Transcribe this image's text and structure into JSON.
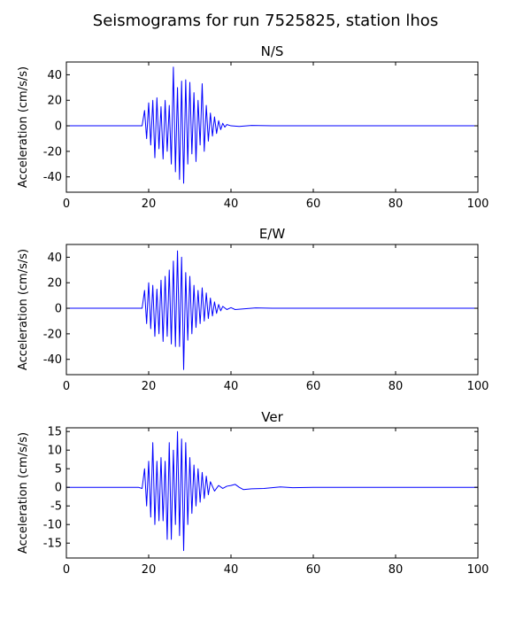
{
  "figure": {
    "title": "Seismograms for run 7525825, station lhos"
  },
  "chart_data": [
    {
      "type": "line",
      "title": "N/S",
      "ylabel": "Acceleration (cm/s/s)",
      "xlabel": "",
      "xlim": [
        0,
        100
      ],
      "ylim": [
        -52,
        50
      ],
      "xticks": [
        0,
        20,
        40,
        60,
        80,
        100
      ],
      "yticks": [
        -40,
        -20,
        0,
        20,
        40
      ],
      "color": "#0000ff",
      "series": [
        {
          "x": [
            0,
            18.4,
            19,
            19.5,
            20,
            20.5,
            21,
            21.5,
            22,
            22.5,
            23,
            23.5,
            24,
            24.5,
            25,
            25.5,
            26,
            26.5,
            27,
            27.5,
            28,
            28.5,
            29,
            29.5,
            30,
            30.5,
            31,
            31.5,
            32,
            32.5,
            33,
            33.5,
            34,
            34.5,
            35,
            35.5,
            36,
            36.5,
            37,
            37.5,
            38,
            38.5,
            39,
            40,
            42,
            45,
            50,
            60,
            100
          ],
          "y": [
            0,
            0,
            12,
            -10,
            18,
            -15,
            20,
            -25,
            22,
            -18,
            15,
            -26,
            20,
            -20,
            16,
            -30,
            46,
            -36,
            30,
            -42,
            35,
            -45,
            36,
            -30,
            34,
            -22,
            26,
            -28,
            20,
            -15,
            33,
            -20,
            16,
            -12,
            10,
            -8,
            7,
            -6,
            4,
            -3,
            2,
            -1,
            1,
            0,
            -0.5,
            0.3,
            0,
            0,
            0
          ]
        }
      ]
    },
    {
      "type": "line",
      "title": "E/W",
      "ylabel": "Acceleration (cm/s/s)",
      "xlabel": "",
      "xlim": [
        0,
        100
      ],
      "ylim": [
        -52,
        50
      ],
      "xticks": [
        0,
        20,
        40,
        60,
        80,
        100
      ],
      "yticks": [
        -40,
        -20,
        0,
        20,
        40
      ],
      "color": "#0000ff",
      "series": [
        {
          "x": [
            0,
            18.4,
            19,
            19.5,
            20,
            20.5,
            21,
            21.5,
            22,
            22.5,
            23,
            23.5,
            24,
            24.5,
            25,
            25.5,
            26,
            26.5,
            27,
            27.5,
            28,
            28.5,
            29,
            29.5,
            30,
            30.5,
            31,
            31.5,
            32,
            32.5,
            33,
            33.5,
            34,
            34.5,
            35,
            35.5,
            36,
            36.5,
            37,
            37.5,
            38,
            39,
            40,
            41,
            43,
            46,
            50,
            60,
            100
          ],
          "y": [
            0,
            0,
            14,
            -12,
            20,
            -16,
            18,
            -22,
            15,
            -20,
            22,
            -26,
            25,
            -22,
            30,
            -28,
            37,
            -30,
            45,
            -30,
            40,
            -48,
            28,
            -25,
            25,
            -20,
            18,
            -15,
            14,
            -12,
            16,
            -10,
            12,
            -8,
            8,
            -6,
            5,
            -4,
            3,
            -2,
            1.5,
            -1,
            0.5,
            -1,
            -0.5,
            0.3,
            0,
            0,
            0
          ]
        }
      ]
    },
    {
      "type": "line",
      "title": "Ver",
      "ylabel": "Acceleration (cm/s/s)",
      "xlabel": "",
      "xlim": [
        0,
        100
      ],
      "ylim": [
        -19,
        16
      ],
      "xticks": [
        0,
        20,
        40,
        60,
        80,
        100
      ],
      "yticks": [
        -15,
        -10,
        -5,
        0,
        5,
        10,
        15
      ],
      "color": "#0000ff",
      "series": [
        {
          "x": [
            0,
            17.5,
            18.4,
            19,
            19.5,
            20,
            20.5,
            21,
            21.5,
            22,
            22.5,
            23,
            23.5,
            24,
            24.5,
            25,
            25.5,
            26,
            26.5,
            27,
            27.5,
            28,
            28.5,
            29,
            29.5,
            30,
            30.5,
            31,
            31.5,
            32,
            32.5,
            33,
            33.5,
            34,
            34.5,
            35,
            36,
            37,
            38,
            39,
            40,
            41,
            42,
            43,
            45,
            48,
            52,
            55,
            60,
            100
          ],
          "y": [
            0,
            0,
            -0.3,
            5,
            -5,
            7,
            -8,
            12,
            -10,
            7,
            -9,
            8,
            -9,
            7,
            -14,
            12,
            -14,
            10,
            -10,
            15,
            -13,
            13,
            -17,
            12,
            -10,
            8,
            -7,
            6,
            -5,
            5,
            -4,
            4,
            -3,
            3,
            -2,
            1.5,
            -1,
            0.5,
            -0.3,
            0.3,
            0.5,
            0.8,
            0,
            -0.6,
            -0.4,
            -0.3,
            0.1,
            -0.1,
            0,
            0
          ]
        }
      ]
    }
  ]
}
